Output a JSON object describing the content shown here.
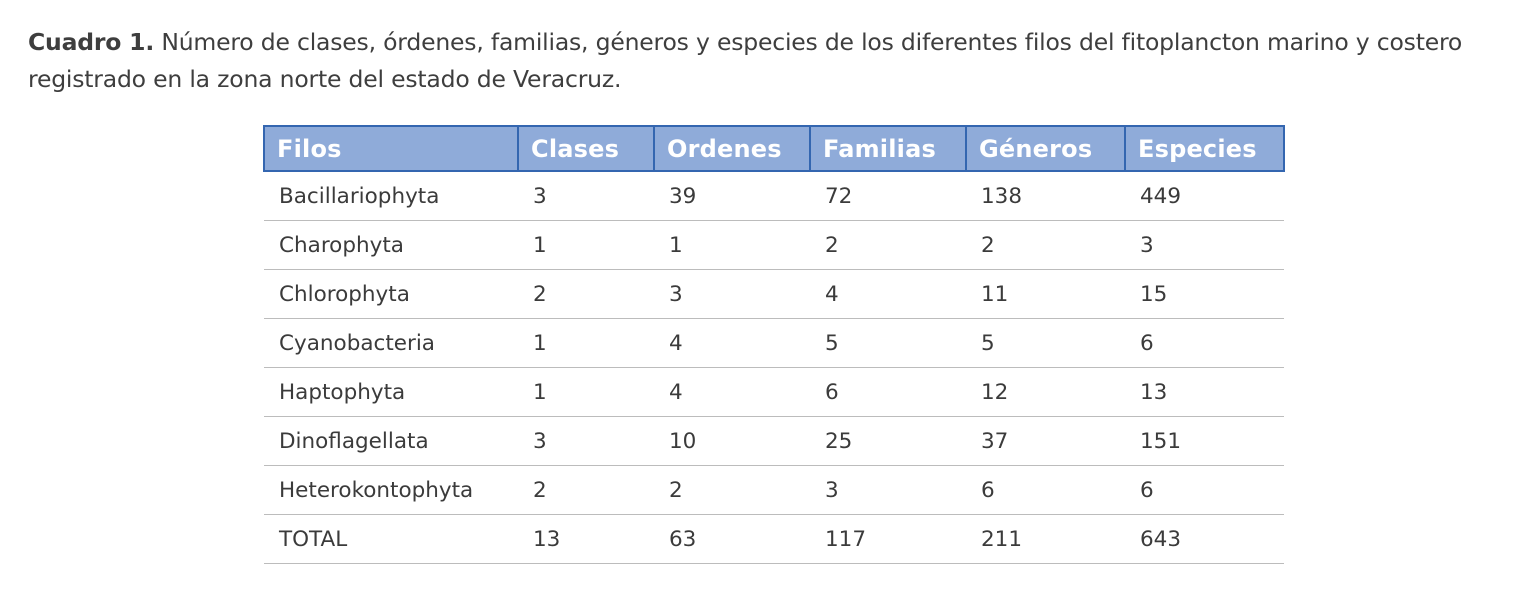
{
  "caption": {
    "lead": "Cuadro 1.",
    "text": " Número de clases, órdenes, familias, géneros y especies de los diferentes filos del fitoplancton marino y costero registrado en la zona norte del estado de Veracruz."
  },
  "table": {
    "headers": [
      "Filos",
      "Clases",
      "Ordenes",
      "Familias",
      "Géneros",
      "Especies"
    ],
    "rows": [
      [
        "Bacillariophyta",
        "3",
        "39",
        "72",
        "138",
        "449"
      ],
      [
        "Charophyta",
        "1",
        "1",
        "2",
        "2",
        "3"
      ],
      [
        "Chlorophyta",
        "2",
        "3",
        "4",
        "11",
        "15"
      ],
      [
        "Cyanobacteria",
        "1",
        "4",
        "5",
        "5",
        "6"
      ],
      [
        "Haptophyta",
        "1",
        "4",
        "6",
        "12",
        "13"
      ],
      [
        "Dinoflagellata",
        "3",
        "10",
        "25",
        "37",
        "151"
      ],
      [
        "Heterokontophyta",
        "2",
        "2",
        "3",
        "6",
        "6"
      ],
      [
        "TOTAL",
        "13",
        "63",
        "117",
        "211",
        "643"
      ]
    ]
  }
}
